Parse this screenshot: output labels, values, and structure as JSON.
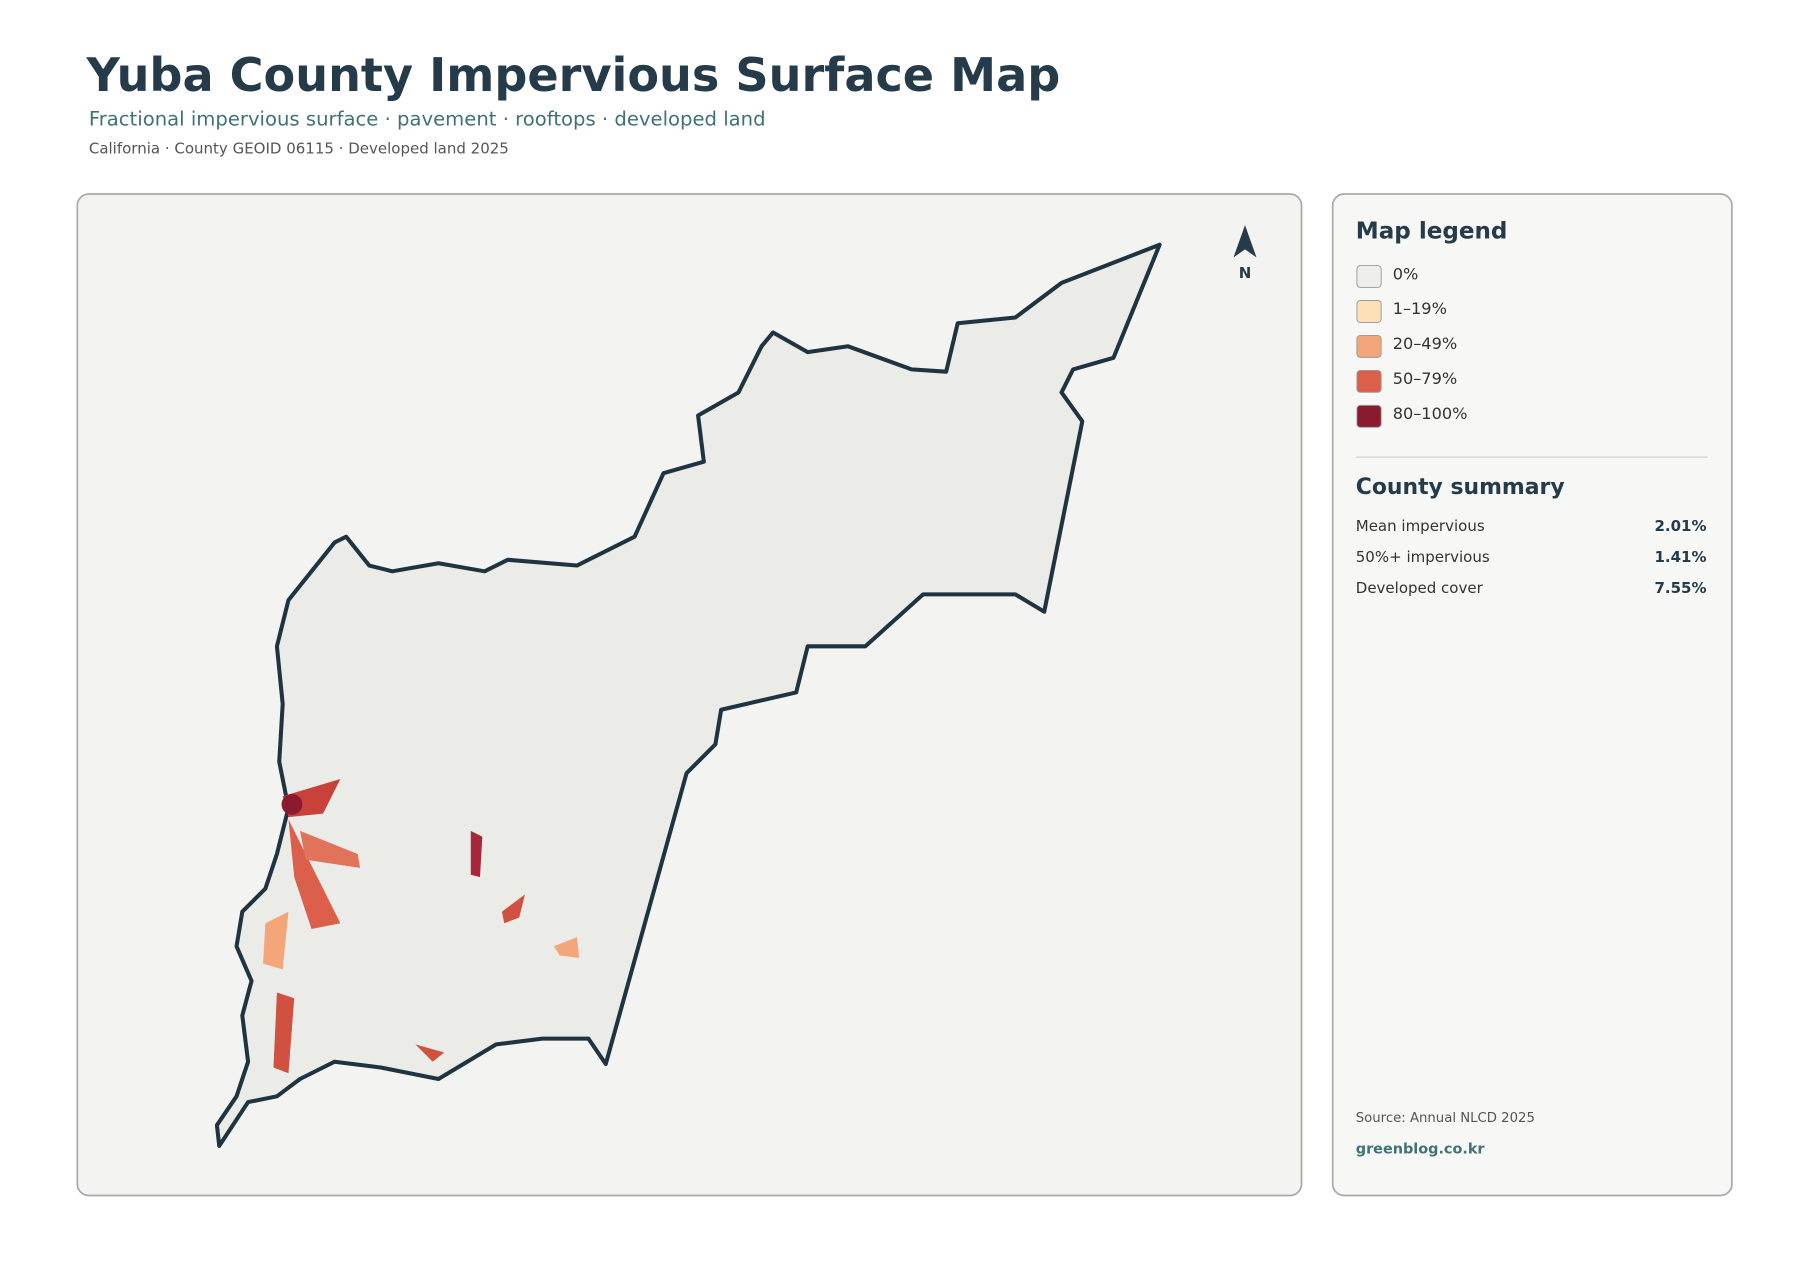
{
  "header": {
    "title": "Yuba County Impervious Surface Map",
    "subtitle": "Fractional impervious surface · pavement · rooftops · developed land",
    "meta": "California · County GEOID 06115 · Developed land 2025"
  },
  "map": {
    "north_label": "N"
  },
  "legend": {
    "title": "Map legend",
    "items": [
      {
        "label": "0%",
        "color": "#eeeeea"
      },
      {
        "label": "1–19%",
        "color": "#fde0b8"
      },
      {
        "label": "20–49%",
        "color": "#f4a57a"
      },
      {
        "label": "50–79%",
        "color": "#dc5f4c"
      },
      {
        "label": "80–100%",
        "color": "#8b1a2e"
      }
    ]
  },
  "summary": {
    "title": "County summary",
    "rows": [
      {
        "label": "Mean impervious",
        "value": "2.01%"
      },
      {
        "label": "50%+ impervious",
        "value": "1.41%"
      },
      {
        "label": "Developed cover",
        "value": "7.55%"
      }
    ]
  },
  "footer": {
    "source": "Source: Annual NLCD 2025",
    "site": "greenblog.co.kr"
  }
}
